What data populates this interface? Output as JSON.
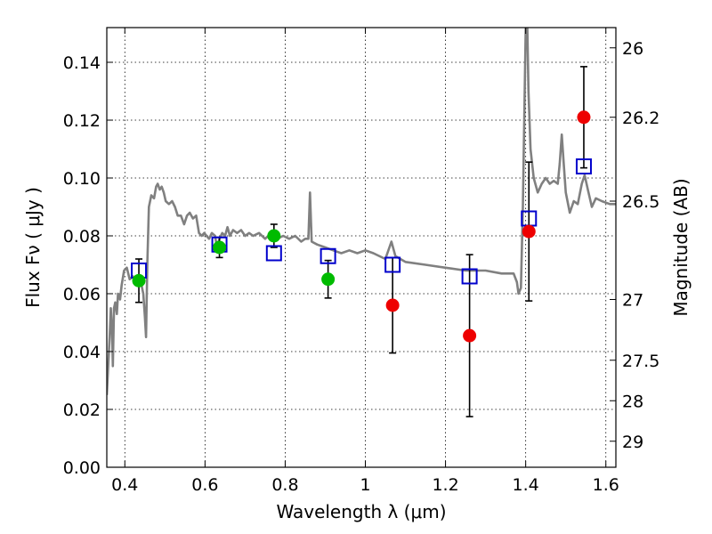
{
  "chart_data": {
    "type": "scatter",
    "xlabel": "Wavelength  λ (μm)",
    "ylabel": "Flux  Fν  ( μJy )",
    "y2label": "Magnitude (AB)",
    "xlim": [
      0.355,
      1.625
    ],
    "ylim": [
      0.0,
      0.152
    ],
    "grid": true,
    "x_ticks": [
      0.4,
      0.6,
      0.8,
      1.0,
      1.2,
      1.4,
      1.6
    ],
    "x_tick_labels": [
      "0.4",
      "0.6",
      "0.8",
      "1",
      "1.2",
      "1.4",
      "1.6"
    ],
    "y_ticks": [
      0.0,
      0.02,
      0.04,
      0.06,
      0.08,
      0.1,
      0.12,
      0.14
    ],
    "y_tick_labels": [
      "0.00",
      "0.02",
      "0.04",
      "0.06",
      "0.08",
      "0.10",
      "0.12",
      "0.14"
    ],
    "y2_ticks": [
      {
        "label": "26",
        "flux": 0.145
      },
      {
        "label": "26.2",
        "flux": 0.121
      },
      {
        "label": "26.5",
        "flux": 0.092
      },
      {
        "label": "27",
        "flux": 0.058
      },
      {
        "label": "27.5",
        "flux": 0.037
      },
      {
        "label": "28",
        "flux": 0.023
      },
      {
        "label": "29",
        "flux": 0.009
      }
    ],
    "series": [
      {
        "name": "model template spectrum",
        "kind": "line",
        "color": "#808080",
        "points": [
          [
            0.355,
            0.025
          ],
          [
            0.362,
            0.045
          ],
          [
            0.365,
            0.055
          ],
          [
            0.368,
            0.047
          ],
          [
            0.37,
            0.035
          ],
          [
            0.373,
            0.055
          ],
          [
            0.376,
            0.057
          ],
          [
            0.38,
            0.053
          ],
          [
            0.383,
            0.06
          ],
          [
            0.388,
            0.058
          ],
          [
            0.392,
            0.063
          ],
          [
            0.398,
            0.068
          ],
          [
            0.405,
            0.069
          ],
          [
            0.412,
            0.065
          ],
          [
            0.42,
            0.066
          ],
          [
            0.428,
            0.063
          ],
          [
            0.435,
            0.066
          ],
          [
            0.44,
            0.064
          ],
          [
            0.446,
            0.06
          ],
          [
            0.45,
            0.052
          ],
          [
            0.453,
            0.045
          ],
          [
            0.456,
            0.07
          ],
          [
            0.46,
            0.09
          ],
          [
            0.466,
            0.094
          ],
          [
            0.473,
            0.093
          ],
          [
            0.478,
            0.097
          ],
          [
            0.482,
            0.098
          ],
          [
            0.487,
            0.096
          ],
          [
            0.492,
            0.097
          ],
          [
            0.497,
            0.095
          ],
          [
            0.502,
            0.092
          ],
          [
            0.51,
            0.091
          ],
          [
            0.518,
            0.092
          ],
          [
            0.525,
            0.09
          ],
          [
            0.532,
            0.087
          ],
          [
            0.54,
            0.087
          ],
          [
            0.548,
            0.084
          ],
          [
            0.555,
            0.087
          ],
          [
            0.562,
            0.088
          ],
          [
            0.57,
            0.086
          ],
          [
            0.578,
            0.087
          ],
          [
            0.585,
            0.081
          ],
          [
            0.592,
            0.08
          ],
          [
            0.598,
            0.081
          ],
          [
            0.604,
            0.08
          ],
          [
            0.61,
            0.079
          ],
          [
            0.617,
            0.081
          ],
          [
            0.625,
            0.08
          ],
          [
            0.63,
            0.076
          ],
          [
            0.636,
            0.079
          ],
          [
            0.643,
            0.081
          ],
          [
            0.65,
            0.08
          ],
          [
            0.656,
            0.083
          ],
          [
            0.662,
            0.08
          ],
          [
            0.67,
            0.082
          ],
          [
            0.68,
            0.081
          ],
          [
            0.69,
            0.082
          ],
          [
            0.7,
            0.08
          ],
          [
            0.71,
            0.081
          ],
          [
            0.72,
            0.08
          ],
          [
            0.735,
            0.081
          ],
          [
            0.75,
            0.079
          ],
          [
            0.765,
            0.081
          ],
          [
            0.78,
            0.079
          ],
          [
            0.795,
            0.08
          ],
          [
            0.81,
            0.079
          ],
          [
            0.825,
            0.08
          ],
          [
            0.84,
            0.078
          ],
          [
            0.85,
            0.079
          ],
          [
            0.858,
            0.079
          ],
          [
            0.862,
            0.095
          ],
          [
            0.866,
            0.078
          ],
          [
            0.88,
            0.077
          ],
          [
            0.9,
            0.076
          ],
          [
            0.92,
            0.075
          ],
          [
            0.94,
            0.074
          ],
          [
            0.96,
            0.075
          ],
          [
            0.98,
            0.074
          ],
          [
            1.0,
            0.075
          ],
          [
            1.02,
            0.074
          ],
          [
            1.05,
            0.072
          ],
          [
            1.065,
            0.078
          ],
          [
            1.075,
            0.073
          ],
          [
            1.1,
            0.071
          ],
          [
            1.15,
            0.07
          ],
          [
            1.2,
            0.069
          ],
          [
            1.25,
            0.068
          ],
          [
            1.3,
            0.068
          ],
          [
            1.34,
            0.067
          ],
          [
            1.37,
            0.067
          ],
          [
            1.378,
            0.064
          ],
          [
            1.382,
            0.06
          ],
          [
            1.388,
            0.062
          ],
          [
            1.393,
            0.09
          ],
          [
            1.397,
            0.125
          ],
          [
            1.4,
            0.152
          ],
          [
            1.404,
            0.152
          ],
          [
            1.407,
            0.13
          ],
          [
            1.412,
            0.11
          ],
          [
            1.42,
            0.1
          ],
          [
            1.43,
            0.095
          ],
          [
            1.44,
            0.098
          ],
          [
            1.45,
            0.1
          ],
          [
            1.46,
            0.098
          ],
          [
            1.47,
            0.099
          ],
          [
            1.48,
            0.098
          ],
          [
            1.485,
            0.105
          ],
          [
            1.49,
            0.115
          ],
          [
            1.495,
            0.105
          ],
          [
            1.5,
            0.095
          ],
          [
            1.51,
            0.088
          ],
          [
            1.52,
            0.092
          ],
          [
            1.53,
            0.091
          ],
          [
            1.54,
            0.098
          ],
          [
            1.547,
            0.101
          ],
          [
            1.555,
            0.096
          ],
          [
            1.565,
            0.09
          ],
          [
            1.575,
            0.093
          ],
          [
            1.59,
            0.092
          ],
          [
            1.61,
            0.091
          ],
          [
            1.625,
            0.091
          ]
        ]
      },
      {
        "name": "model photometry",
        "kind": "open-square",
        "color": "#0000cc",
        "points": [
          {
            "x": 0.435,
            "y": 0.068
          },
          {
            "x": 0.636,
            "y": 0.077
          },
          {
            "x": 0.772,
            "y": 0.074
          },
          {
            "x": 0.907,
            "y": 0.073
          },
          {
            "x": 1.068,
            "y": 0.07
          },
          {
            "x": 1.26,
            "y": 0.066
          },
          {
            "x": 1.408,
            "y": 0.086
          },
          {
            "x": 1.545,
            "y": 0.104
          }
        ]
      },
      {
        "name": "observed (green)",
        "kind": "filled-circle",
        "color": "#00bb00",
        "points": [
          {
            "x": 0.435,
            "y": 0.0645,
            "err": 0.0075
          },
          {
            "x": 0.636,
            "y": 0.076,
            "err": 0.0035
          },
          {
            "x": 0.772,
            "y": 0.08,
            "err": 0.004
          },
          {
            "x": 0.907,
            "y": 0.065,
            "err": 0.0065
          }
        ]
      },
      {
        "name": "observed (red)",
        "kind": "filled-circle",
        "color": "#ee0000",
        "points": [
          {
            "x": 1.068,
            "y": 0.056,
            "err": 0.0165
          },
          {
            "x": 1.26,
            "y": 0.0455,
            "err": 0.028
          },
          {
            "x": 1.408,
            "y": 0.0815,
            "err": 0.024
          },
          {
            "x": 1.545,
            "y": 0.121,
            "err": 0.0175
          }
        ]
      }
    ]
  }
}
